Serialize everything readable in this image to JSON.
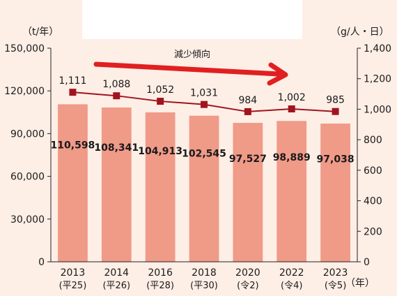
{
  "chart_data": {
    "type": "bar",
    "categories": [
      "2013",
      "2014",
      "2016",
      "2018",
      "2020",
      "2022",
      "2023"
    ],
    "category_era_labels": [
      "(平25)",
      "(平26)",
      "(平28)",
      "(平30)",
      "(令2)",
      "(令4)",
      "(令5)"
    ],
    "series": [
      {
        "type": "bar",
        "axis": "left",
        "color": "#f09a88",
        "values": [
          110598,
          108341,
          104913,
          102545,
          97527,
          98889,
          97038
        ],
        "labels": [
          "110,598",
          "108,341",
          "104,913",
          "102,545",
          "97,527",
          "98,889",
          "97,038"
        ]
      },
      {
        "type": "line",
        "axis": "right",
        "color": "#a0141e",
        "values": [
          1111,
          1088,
          1052,
          1031,
          984,
          1002,
          985
        ],
        "labels": [
          "1,111",
          "1,088",
          "1,052",
          "1,031",
          "984",
          "1,002",
          "985"
        ]
      }
    ],
    "y_left": {
      "unit": "（t/年）",
      "ylim": [
        0,
        150000
      ],
      "ticks": [
        0,
        30000,
        60000,
        90000,
        120000,
        150000
      ],
      "tick_labels": [
        "0",
        "30,000",
        "60,000",
        "90,000",
        "120,000",
        "150,000"
      ]
    },
    "y_right": {
      "unit": "（g/人・日）",
      "ylim": [
        0,
        1400
      ],
      "ticks": [
        0,
        200,
        400,
        600,
        800,
        1000,
        1200,
        1400
      ],
      "tick_labels": [
        "0",
        "200",
        "400",
        "600",
        "800",
        "1,000",
        "1,200",
        "1,400"
      ]
    },
    "x_unit": "（年）",
    "annotation": {
      "text": "減少傾向",
      "color": "#e02020"
    },
    "grid": false
  }
}
